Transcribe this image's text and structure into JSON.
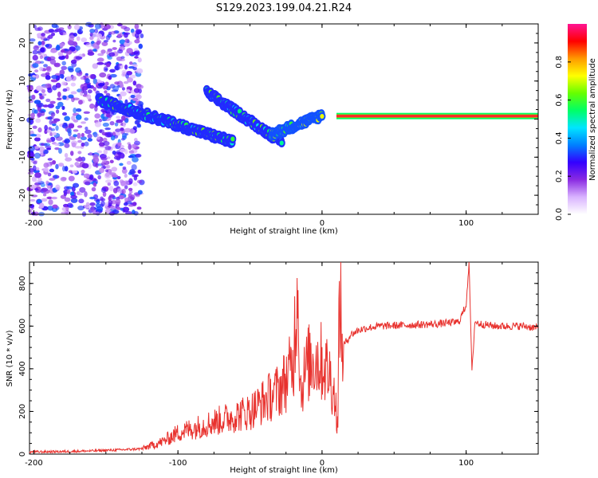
{
  "title": "S129.2023.199.04.21.R24",
  "chart_data": [
    {
      "type": "heatmap",
      "xlabel": "Height of straight line (km)",
      "ylabel": "Frequency (Hz)",
      "xlim": [
        -203,
        150
      ],
      "ylim": [
        -25,
        25
      ],
      "xticks": [
        -200,
        -100,
        0,
        100
      ],
      "yticks": [
        -20,
        -10,
        0,
        10,
        20
      ],
      "grid": false,
      "colorbar": {
        "label": "Normalized spectral amplitude",
        "range": [
          0,
          1
        ],
        "ticks": [
          "0.0",
          "0.2",
          "0.4",
          "0.6",
          "0.8"
        ],
        "colors": [
          "#ffffff",
          "#d9b3ff",
          "#8a2be2",
          "#3300ff",
          "#0080ff",
          "#00e5ff",
          "#00ff66",
          "#66ff00",
          "#ffff00",
          "#ff9900",
          "#ff0000",
          "#ff1493"
        ]
      },
      "features": [
        {
          "name": "scattered noise",
          "x": [
            -203,
            -125
          ],
          "y": [
            -25,
            25
          ],
          "level": 0.25
        },
        {
          "name": "band A",
          "x": [
            -155,
            -62
          ],
          "y": [
            5,
            -6
          ],
          "level": 0.55
        },
        {
          "name": "band B",
          "x": [
            -80,
            -28
          ],
          "y": [
            7,
            -6
          ],
          "level": 0.55
        },
        {
          "name": "band C",
          "x": [
            -35,
            0
          ],
          "y": [
            -4,
            1
          ],
          "level": 0.6
        },
        {
          "name": "carrier",
          "x": [
            10,
            150
          ],
          "y": [
            0.8,
            0.8
          ],
          "level": 0.95
        }
      ]
    },
    {
      "type": "line",
      "xlabel": "Height of straight line (km)",
      "ylabel": "SNR (10 * v/v)",
      "xlim": [
        -203,
        150
      ],
      "ylim": [
        0,
        900
      ],
      "xticks": [
        -200,
        -100,
        0,
        100
      ],
      "yticks": [
        0,
        200,
        400,
        600,
        800
      ],
      "grid": false,
      "series": [
        {
          "color": "#e8322e",
          "x": [
            -203,
            -180,
            -160,
            -140,
            -125,
            -110,
            -100,
            -90,
            -80,
            -70,
            -60,
            -50,
            -40,
            -30,
            -25,
            -20,
            -17,
            -15,
            -10,
            -5,
            0,
            5,
            8,
            10,
            11,
            12,
            14,
            16,
            20,
            25,
            30,
            40,
            60,
            80,
            95,
            100,
            102,
            104,
            106,
            110,
            120,
            130,
            140,
            150
          ],
          "y": [
            10,
            12,
            15,
            20,
            25,
            60,
            100,
            120,
            140,
            160,
            180,
            200,
            250,
            300,
            350,
            420,
            860,
            300,
            420,
            450,
            430,
            380,
            300,
            200,
            110,
            780,
            500,
            520,
            560,
            580,
            590,
            600,
            605,
            610,
            620,
            700,
            900,
            380,
            620,
            610,
            600,
            600,
            600,
            590
          ]
        }
      ]
    }
  ]
}
